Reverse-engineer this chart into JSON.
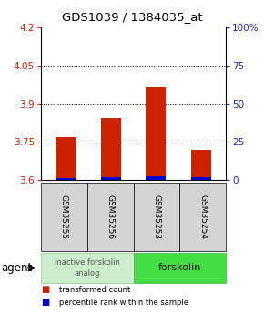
{
  "title": "GDS1039 / 1384035_at",
  "samples": [
    "GSM35255",
    "GSM35256",
    "GSM35253",
    "GSM35254"
  ],
  "transformed_counts": [
    3.77,
    3.845,
    3.965,
    3.72
  ],
  "percentile_values": [
    3.607,
    3.612,
    3.614,
    3.609
  ],
  "ymin": 3.6,
  "ymax": 4.2,
  "yticks_left": [
    3.6,
    3.75,
    3.9,
    4.05,
    4.2
  ],
  "yticks_right": [
    0,
    25,
    50,
    75,
    100
  ],
  "bar_color_red": "#cc2200",
  "bar_color_blue": "#0000cc",
  "group1_label": "inactive forskolin\nanalog",
  "group2_label": "forskolin",
  "group1_color": "#cceecc",
  "group2_color": "#44dd44",
  "legend_red": "transformed count",
  "legend_blue": "percentile rank within the sample",
  "agent_label": "agent",
  "title_fontsize": 9.5,
  "tick_fontsize": 7.5,
  "bar_width": 0.45
}
